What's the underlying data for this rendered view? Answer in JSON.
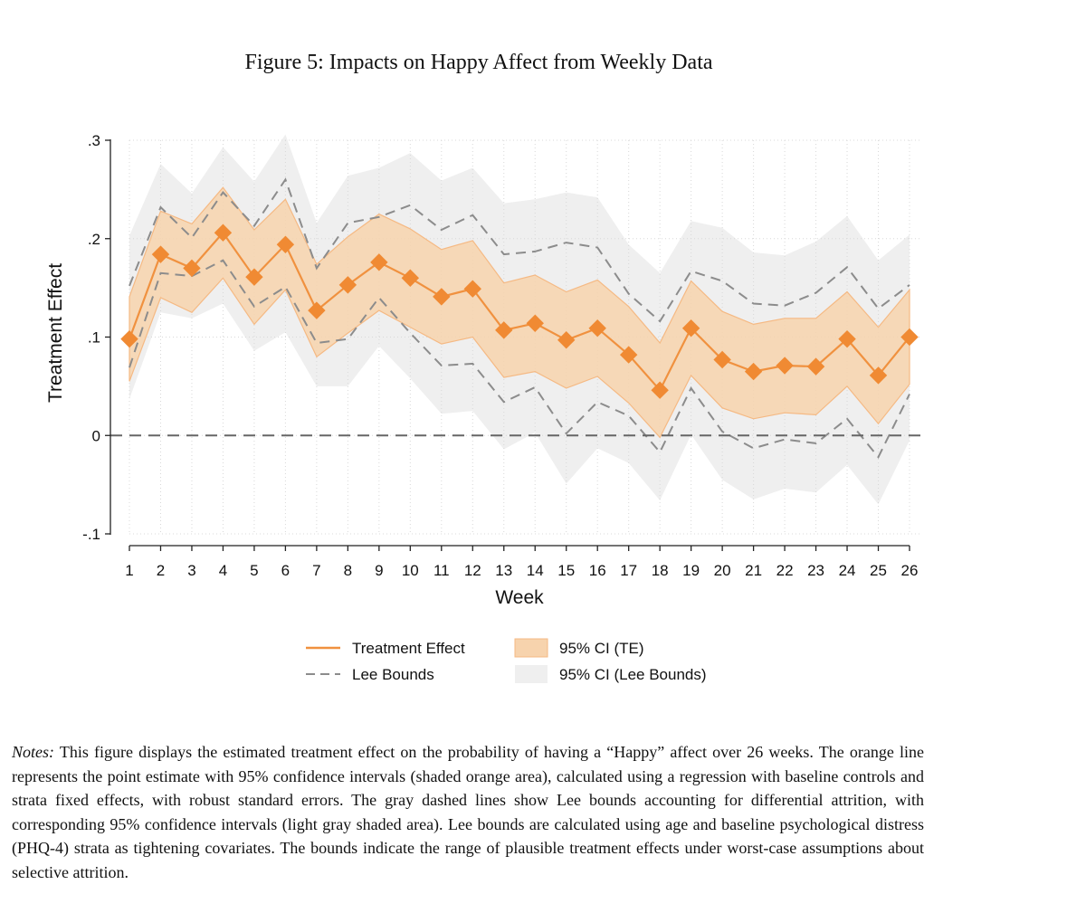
{
  "figure": {
    "title": "Figure 5: Impacts on Happy Affect from Weekly Data",
    "notes_label": "Notes:",
    "notes_text": "This figure displays the estimated treatment effect on the probability of having a “Happy” affect over 26 weeks. The orange line represents the point estimate with 95% confidence intervals (shaded orange area), calculated using a regression with baseline controls and strata fixed effects, with robust standard errors. The gray dashed lines show Lee bounds accounting for differential attrition, with corresponding 95% confidence intervals (light gray shaded area). Lee bounds are calculated using age and baseline psychological distress (PHQ-4) strata as tightening covariates. The bounds indicate the range of plausible treatment effects under worst-case assumptions about selective attrition."
  },
  "colors": {
    "te_line": "#f0913f",
    "te_marker": "#f08a33",
    "te_ci_fill": "#f7d3ad",
    "te_ci_edge": "#f5b983",
    "lee_line": "#8c8c8c",
    "lee_ci_fill": "#efefef",
    "zero_line": "#666666",
    "grid": "#d8d8d8"
  },
  "chart_data": {
    "type": "line",
    "title": "",
    "xlabel": "Week",
    "ylabel": "Treatment Effect",
    "x": [
      1,
      2,
      3,
      4,
      5,
      6,
      7,
      8,
      9,
      10,
      11,
      12,
      13,
      14,
      15,
      16,
      17,
      18,
      19,
      20,
      21,
      22,
      23,
      24,
      25,
      26
    ],
    "xlim": [
      1,
      26
    ],
    "ylim": [
      -0.1,
      0.3
    ],
    "yticks": [
      -0.1,
      0,
      0.1,
      0.2,
      0.3
    ],
    "ytick_labels": [
      "-.1",
      "0",
      ".1",
      ".2",
      ".3"
    ],
    "grid": true,
    "legend_position": "bottom",
    "legend": {
      "te": "Treatment Effect",
      "lee": "Lee Bounds",
      "te_ci": "95% CI (TE)",
      "lee_ci": "95% CI (Lee Bounds)"
    },
    "series": [
      {
        "name": "Treatment Effect",
        "values": [
          0.098,
          0.184,
          0.17,
          0.206,
          0.161,
          0.194,
          0.127,
          0.153,
          0.176,
          0.16,
          0.141,
          0.149,
          0.107,
          0.114,
          0.097,
          0.109,
          0.082,
          0.046,
          0.109,
          0.077,
          0.065,
          0.071,
          0.07,
          0.098,
          0.061,
          0.1
        ],
        "ci_lower": [
          0.055,
          0.14,
          0.125,
          0.16,
          0.113,
          0.148,
          0.08,
          0.104,
          0.127,
          0.11,
          0.093,
          0.1,
          0.059,
          0.065,
          0.048,
          0.06,
          0.033,
          -0.002,
          0.061,
          0.028,
          0.017,
          0.023,
          0.021,
          0.05,
          0.012,
          0.052
        ],
        "ci_upper": [
          0.141,
          0.228,
          0.215,
          0.252,
          0.209,
          0.24,
          0.174,
          0.202,
          0.225,
          0.21,
          0.189,
          0.198,
          0.155,
          0.163,
          0.146,
          0.158,
          0.131,
          0.094,
          0.157,
          0.126,
          0.113,
          0.119,
          0.119,
          0.146,
          0.11,
          0.148
        ]
      },
      {
        "name": "Lee Bounds (upper)",
        "values": [
          0.152,
          0.232,
          0.201,
          0.247,
          0.213,
          0.26,
          0.17,
          0.216,
          0.222,
          0.234,
          0.209,
          0.224,
          0.184,
          0.187,
          0.196,
          0.191,
          0.144,
          0.116,
          0.167,
          0.157,
          0.134,
          0.132,
          0.145,
          0.171,
          0.129,
          0.153
        ]
      },
      {
        "name": "Lee Bounds (lower)",
        "values": [
          0.069,
          0.165,
          0.162,
          0.178,
          0.131,
          0.151,
          0.094,
          0.098,
          0.14,
          0.104,
          0.071,
          0.073,
          0.034,
          0.049,
          0.002,
          0.034,
          0.02,
          -0.017,
          0.048,
          0.004,
          -0.013,
          -0.004,
          -0.008,
          0.017,
          -0.022,
          0.042
        ]
      },
      {
        "name": "95% CI (Lee Bounds)",
        "ci_lower": [
          0.037,
          0.125,
          0.119,
          0.134,
          0.086,
          0.105,
          0.05,
          0.05,
          0.091,
          0.058,
          0.022,
          0.025,
          -0.014,
          0.003,
          -0.049,
          -0.013,
          -0.028,
          -0.066,
          0.001,
          -0.045,
          -0.065,
          -0.054,
          -0.058,
          -0.03,
          -0.07,
          -0.005
        ],
        "ci_upper": [
          0.203,
          0.276,
          0.246,
          0.293,
          0.258,
          0.306,
          0.216,
          0.264,
          0.272,
          0.287,
          0.259,
          0.272,
          0.236,
          0.24,
          0.247,
          0.242,
          0.194,
          0.165,
          0.218,
          0.211,
          0.186,
          0.183,
          0.197,
          0.223,
          0.178,
          0.204
        ]
      }
    ]
  }
}
